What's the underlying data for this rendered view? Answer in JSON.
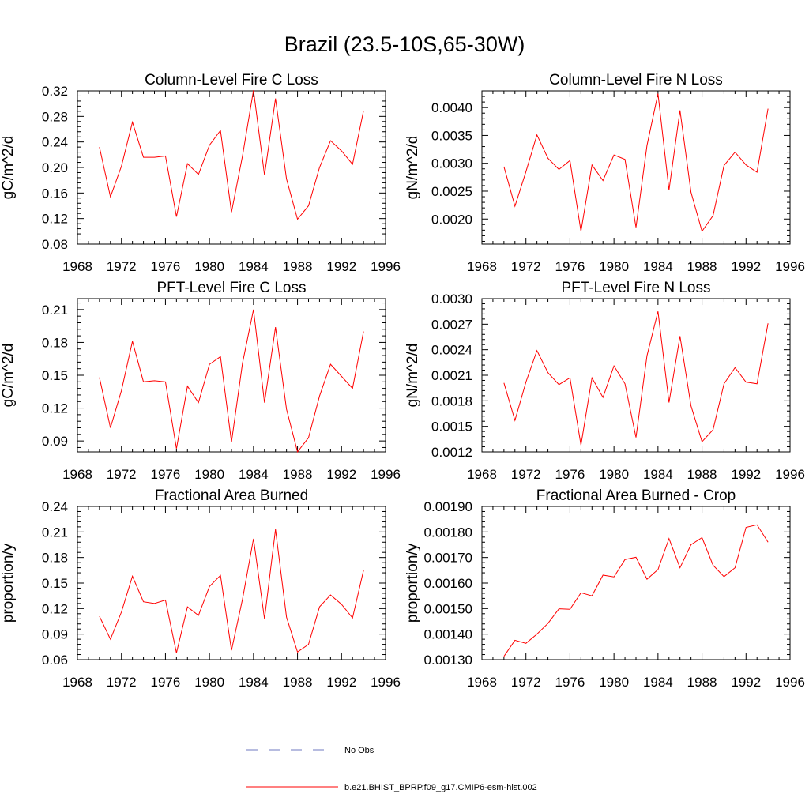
{
  "title": "Brazil (23.5-10S,65-30W)",
  "colors": {
    "model": "#ff0000",
    "obs": "#6f78c2",
    "axis": "#000000"
  },
  "legend": {
    "obs_label": "No Obs",
    "model_label": "b.e21.BHIST_BPRP.f09_g17.CMIP6-esm-hist.002"
  },
  "chart_data": [
    {
      "type": "line",
      "title": "Column-Level Fire C Loss",
      "ylabel": "gC/m^2/d",
      "xlim": [
        1968,
        1996
      ],
      "xticks": [
        "1968",
        "1972",
        "1976",
        "1980",
        "1984",
        "1988",
        "1992",
        "1996"
      ],
      "ylim": [
        0.08,
        0.32
      ],
      "yticks": [
        "0.08",
        "0.12",
        "0.16",
        "0.20",
        "0.24",
        "0.28",
        "0.32"
      ],
      "x": [
        1970,
        1971,
        1972,
        1973,
        1974,
        1975,
        1976,
        1977,
        1978,
        1979,
        1980,
        1981,
        1982,
        1983,
        1984,
        1985,
        1986,
        1987,
        1988,
        1989,
        1990,
        1991,
        1992,
        1993,
        1994
      ],
      "series": [
        {
          "name": "b.e21.BHIST_BPRP.f09_g17.CMIP6-esm-hist.002",
          "values": [
            0.232,
            0.154,
            0.202,
            0.271,
            0.216,
            0.216,
            0.218,
            0.123,
            0.206,
            0.189,
            0.235,
            0.258,
            0.13,
            0.218,
            0.321,
            0.188,
            0.308,
            0.182,
            0.119,
            0.14,
            0.2,
            0.242,
            0.226,
            0.205,
            0.289
          ]
        }
      ]
    },
    {
      "type": "line",
      "title": "Column-Level Fire N Loss",
      "ylabel": "gN/m^2/d",
      "xlim": [
        1968,
        1996
      ],
      "xticks": [
        "1968",
        "1972",
        "1976",
        "1980",
        "1984",
        "1988",
        "1992",
        "1996"
      ],
      "ylim": [
        0.00155,
        0.0043
      ],
      "yticks": [
        "0.0020",
        "0.0025",
        "0.0030",
        "0.0035",
        "0.0040"
      ],
      "x": [
        1970,
        1971,
        1972,
        1973,
        1974,
        1975,
        1976,
        1977,
        1978,
        1979,
        1980,
        1981,
        1982,
        1983,
        1984,
        1985,
        1986,
        1987,
        1988,
        1989,
        1990,
        1991,
        1992,
        1993,
        1994
      ],
      "series": [
        {
          "name": "b.e21.BHIST_BPRP.f09_g17.CMIP6-esm-hist.002",
          "values": [
            0.00294,
            0.00223,
            0.00285,
            0.00351,
            0.00309,
            0.00289,
            0.00305,
            0.00178,
            0.00297,
            0.00269,
            0.00315,
            0.00307,
            0.00185,
            0.00332,
            0.00425,
            0.00252,
            0.00395,
            0.00248,
            0.00178,
            0.00206,
            0.00296,
            0.0032,
            0.00297,
            0.00284,
            0.00398
          ]
        }
      ]
    },
    {
      "type": "line",
      "title": "PFT-Level Fire C Loss",
      "ylabel": "gC/m^2/d",
      "xlim": [
        1968,
        1996
      ],
      "xticks": [
        "1968",
        "1972",
        "1976",
        "1980",
        "1984",
        "1988",
        "1992",
        "1996"
      ],
      "ylim": [
        0.08,
        0.22
      ],
      "yticks": [
        "0.09",
        "0.12",
        "0.15",
        "0.18",
        "0.21"
      ],
      "x": [
        1970,
        1971,
        1972,
        1973,
        1974,
        1975,
        1976,
        1977,
        1978,
        1979,
        1980,
        1981,
        1982,
        1983,
        1984,
        1985,
        1986,
        1987,
        1988,
        1989,
        1990,
        1991,
        1992,
        1993,
        1994
      ],
      "series": [
        {
          "name": "b.e21.BHIST_BPRP.f09_g17.CMIP6-esm-hist.002",
          "values": [
            0.148,
            0.102,
            0.136,
            0.181,
            0.144,
            0.145,
            0.144,
            0.083,
            0.14,
            0.125,
            0.16,
            0.167,
            0.089,
            0.161,
            0.21,
            0.125,
            0.194,
            0.119,
            0.08,
            0.093,
            0.131,
            0.16,
            0.149,
            0.138,
            0.19
          ]
        }
      ]
    },
    {
      "type": "line",
      "title": "PFT-Level Fire N Loss",
      "ylabel": "gN/m^2/d",
      "xlim": [
        1968,
        1996
      ],
      "xticks": [
        "1968",
        "1972",
        "1976",
        "1980",
        "1984",
        "1988",
        "1992",
        "1996"
      ],
      "ylim": [
        0.0012,
        0.003
      ],
      "yticks": [
        "0.0012",
        "0.0015",
        "0.0018",
        "0.0021",
        "0.0024",
        "0.0027",
        "0.0030"
      ],
      "x": [
        1970,
        1971,
        1972,
        1973,
        1974,
        1975,
        1976,
        1977,
        1978,
        1979,
        1980,
        1981,
        1982,
        1983,
        1984,
        1985,
        1986,
        1987,
        1988,
        1989,
        1990,
        1991,
        1992,
        1993,
        1994
      ],
      "series": [
        {
          "name": "b.e21.BHIST_BPRP.f09_g17.CMIP6-esm-hist.002",
          "values": [
            0.00201,
            0.00157,
            0.00202,
            0.00239,
            0.00213,
            0.00199,
            0.00207,
            0.00128,
            0.00207,
            0.00184,
            0.00221,
            0.002,
            0.00137,
            0.00233,
            0.00285,
            0.00178,
            0.00256,
            0.00174,
            0.00132,
            0.00146,
            0.002,
            0.00219,
            0.00202,
            0.002,
            0.00271
          ]
        }
      ]
    },
    {
      "type": "line",
      "title": "Fractional Area Burned",
      "ylabel": "proportion/y",
      "xlim": [
        1968,
        1996
      ],
      "xticks": [
        "1968",
        "1972",
        "1976",
        "1980",
        "1984",
        "1988",
        "1992",
        "1996"
      ],
      "ylim": [
        0.06,
        0.24
      ],
      "yticks": [
        "0.06",
        "0.09",
        "0.12",
        "0.15",
        "0.18",
        "0.21",
        "0.24"
      ],
      "x": [
        1970,
        1971,
        1972,
        1973,
        1974,
        1975,
        1976,
        1977,
        1978,
        1979,
        1980,
        1981,
        1982,
        1983,
        1984,
        1985,
        1986,
        1987,
        1988,
        1989,
        1990,
        1991,
        1992,
        1993,
        1994
      ],
      "series": [
        {
          "name": "b.e21.BHIST_BPRP.f09_g17.CMIP6-esm-hist.002",
          "values": [
            0.111,
            0.084,
            0.116,
            0.158,
            0.128,
            0.126,
            0.13,
            0.068,
            0.122,
            0.112,
            0.146,
            0.159,
            0.071,
            0.131,
            0.202,
            0.108,
            0.213,
            0.11,
            0.069,
            0.078,
            0.122,
            0.136,
            0.125,
            0.109,
            0.165
          ]
        }
      ]
    },
    {
      "type": "line",
      "title": "Fractional Area Burned - Crop",
      "ylabel": "proportion/y",
      "xlim": [
        1968,
        1996
      ],
      "xticks": [
        "1968",
        "1972",
        "1976",
        "1980",
        "1984",
        "1988",
        "1992",
        "1996"
      ],
      "ylim": [
        0.0013,
        0.0019
      ],
      "yticks": [
        "0.00130",
        "0.00140",
        "0.00150",
        "0.00160",
        "0.00170",
        "0.00180",
        "0.00190"
      ],
      "x": [
        1970,
        1971,
        1972,
        1973,
        1974,
        1975,
        1976,
        1977,
        1978,
        1979,
        1980,
        1981,
        1982,
        1983,
        1984,
        1985,
        1986,
        1987,
        1988,
        1989,
        1990,
        1991,
        1992,
        1993,
        1994
      ],
      "series": [
        {
          "name": "b.e21.BHIST_BPRP.f09_g17.CMIP6-esm-hist.002",
          "values": [
            0.001313,
            0.001376,
            0.001364,
            0.0014,
            0.001442,
            0.001499,
            0.001497,
            0.001562,
            0.00155,
            0.001631,
            0.001624,
            0.001692,
            0.001701,
            0.001615,
            0.001653,
            0.001774,
            0.00166,
            0.00175,
            0.001778,
            0.00167,
            0.001625,
            0.00166,
            0.001818,
            0.001828,
            0.00176
          ]
        }
      ]
    }
  ]
}
